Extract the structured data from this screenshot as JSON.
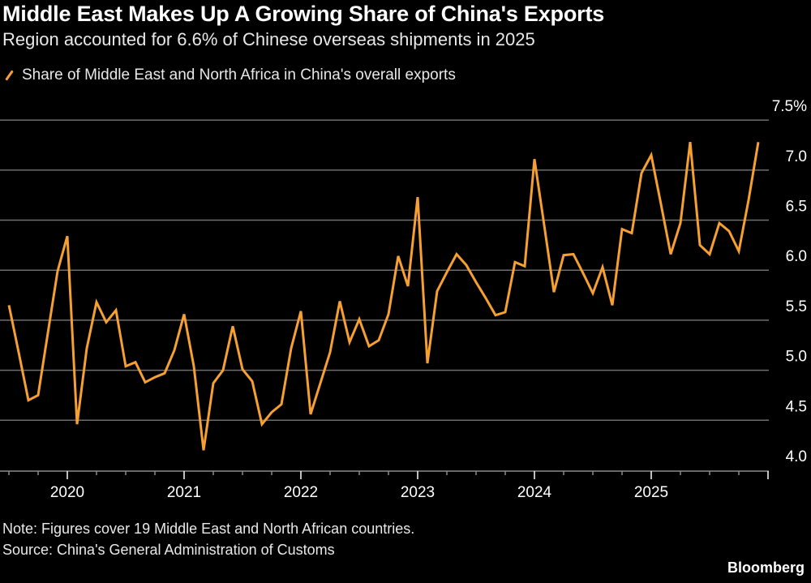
{
  "chart_data": {
    "type": "line",
    "title": "Middle East Makes Up A Growing Share of China's Exports",
    "subtitle": "Region accounted for 6.6% of Chinese overseas shipments in 2025",
    "legend": "top-left",
    "grid": true,
    "xlabel": "",
    "ylabel": "",
    "ylim": [
      4.0,
      7.5
    ],
    "y_ticks": [
      "7.5%",
      "7.0",
      "6.5",
      "6.0",
      "5.5",
      "5.0",
      "4.5",
      "4.0"
    ],
    "x_ticks": [
      "2020",
      "2021",
      "2022",
      "2023",
      "2024",
      "2025"
    ],
    "x_start": "2019-07",
    "x_end": "2025-12",
    "x_frequency": "monthly",
    "series": [
      {
        "name": "Share of Middle East and North Africa in China's overall exports",
        "color": "#f6a032",
        "values": [
          5.65,
          5.18,
          4.7,
          4.75,
          5.37,
          5.99,
          6.34,
          4.46,
          5.22,
          5.68,
          5.48,
          5.6,
          5.04,
          5.08,
          4.88,
          4.93,
          4.97,
          5.2,
          5.56,
          5.04,
          4.2,
          4.87,
          5.0,
          5.44,
          5.01,
          4.89,
          4.46,
          4.58,
          4.66,
          5.22,
          5.59,
          4.56,
          4.87,
          5.18,
          5.69,
          5.28,
          5.51,
          5.24,
          5.3,
          5.56,
          6.14,
          5.84,
          6.73,
          5.07,
          5.79,
          5.98,
          6.16,
          6.05,
          5.88,
          5.72,
          5.55,
          5.58,
          6.08,
          6.04,
          7.11,
          6.45,
          5.78,
          6.15,
          6.16,
          5.97,
          5.77,
          6.03,
          5.65,
          6.41,
          6.37,
          6.97,
          7.15,
          6.66,
          6.16,
          6.47,
          7.28,
          6.25,
          6.16,
          6.47,
          6.39,
          6.19,
          6.7,
          7.28
        ]
      }
    ],
    "note": "Note: Figures cover 19 Middle East and North African countries.",
    "source": "Source: China's General Administration of Customs",
    "brand": "Bloomberg"
  }
}
